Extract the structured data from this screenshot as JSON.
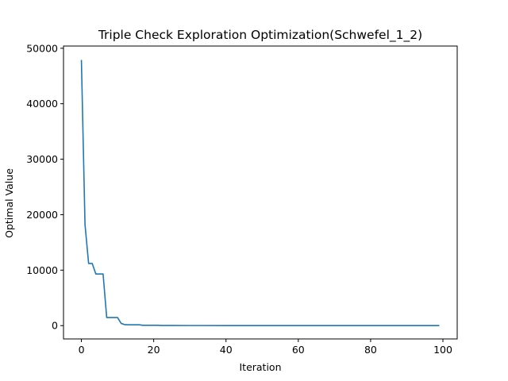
{
  "chart_data": {
    "type": "line",
    "title": "Triple Check Exploration Optimization(Schwefel_1_2)",
    "xlabel": "Iteration",
    "ylabel": "Optimal Value",
    "xlim": [
      -4.95,
      103.95
    ],
    "ylim": [
      -2400,
      50400
    ],
    "xticks": [
      0,
      20,
      40,
      60,
      80,
      100
    ],
    "yticks": [
      0,
      10000,
      20000,
      30000,
      40000,
      50000
    ],
    "grid": false,
    "series": [
      {
        "color": "#1f77b4",
        "x": [
          0,
          1,
          2,
          3,
          4,
          5,
          6,
          7,
          8,
          9,
          10,
          11,
          12,
          13,
          14,
          15,
          16,
          17,
          18,
          19,
          20,
          21,
          22,
          25,
          30,
          40,
          50,
          60,
          70,
          80,
          90,
          99
        ],
        "y": [
          47900,
          18200,
          11200,
          11200,
          9300,
          9300,
          9300,
          1450,
          1450,
          1450,
          1450,
          400,
          180,
          150,
          150,
          150,
          150,
          60,
          60,
          60,
          60,
          60,
          30,
          20,
          15,
          10,
          10,
          10,
          10,
          10,
          10,
          10
        ]
      }
    ]
  }
}
